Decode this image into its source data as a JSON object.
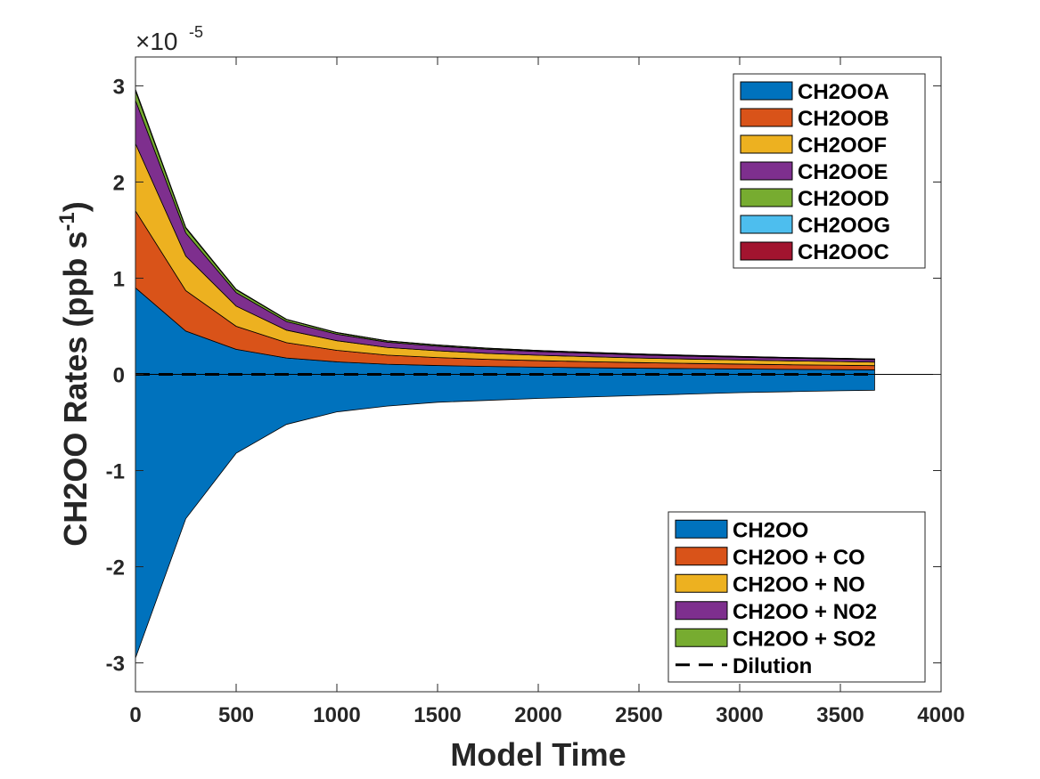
{
  "chart_data": {
    "type": "area",
    "title": "",
    "xlabel": "Model Time",
    "ylabel_main": "CH2OO Rates (ppb s",
    "ylabel_sup": "-1",
    "ylabel_close": ")",
    "exponent_prefix": "×10",
    "exponent_power": "-5",
    "xlim": [
      0,
      4000
    ],
    "ylim": [
      -3.3,
      3.3
    ],
    "x_ticks": [
      0,
      500,
      1000,
      1500,
      2000,
      2500,
      3000,
      3500,
      4000
    ],
    "y_ticks": [
      -3,
      -2,
      -1,
      0,
      1,
      2,
      3
    ],
    "x_tick_labels": [
      "0",
      "500",
      "1000",
      "1500",
      "2000",
      "2500",
      "3000",
      "3500",
      "4000"
    ],
    "y_tick_labels": [
      "-3",
      "-2",
      "-1",
      "0",
      "1",
      "2",
      "3"
    ],
    "x": [
      0,
      250,
      500,
      750,
      1000,
      1250,
      1500,
      1750,
      2000,
      2250,
      2500,
      2750,
      3000,
      3250,
      3500,
      3670
    ],
    "series": [
      {
        "name": "CH2OOA",
        "color": "#0072BD",
        "values": [
          0.9,
          0.45,
          0.26,
          0.17,
          0.13,
          0.105,
          0.092,
          0.082,
          0.075,
          0.069,
          0.064,
          0.06,
          0.056,
          0.052,
          0.049,
          0.047
        ]
      },
      {
        "name": "CH2OOB",
        "color": "#D95319",
        "values": [
          0.8,
          0.42,
          0.24,
          0.16,
          0.12,
          0.095,
          0.083,
          0.074,
          0.068,
          0.063,
          0.058,
          0.054,
          0.051,
          0.048,
          0.046,
          0.044
        ]
      },
      {
        "name": "CH2OOF",
        "color": "#EDB120",
        "values": [
          0.7,
          0.36,
          0.21,
          0.13,
          0.1,
          0.08,
          0.07,
          0.062,
          0.056,
          0.052,
          0.048,
          0.045,
          0.042,
          0.04,
          0.038,
          0.037
        ]
      },
      {
        "name": "CH2OOE",
        "color": "#7E2F8E",
        "values": [
          0.45,
          0.24,
          0.14,
          0.09,
          0.068,
          0.055,
          0.048,
          0.043,
          0.039,
          0.036,
          0.033,
          0.031,
          0.029,
          0.028,
          0.026,
          0.025
        ]
      },
      {
        "name": "CH2OOD",
        "color": "#77AC30",
        "values": [
          0.1,
          0.05,
          0.03,
          0.02,
          0.015,
          0.012,
          0.011,
          0.01,
          0.009,
          0.008,
          0.008,
          0.007,
          0.007,
          0.006,
          0.006,
          0.006
        ]
      },
      {
        "name": "CH2OOG",
        "color": "#4DBEEE",
        "values": [
          0.01,
          0.005,
          0.003,
          0.002,
          0.0015,
          0.0012,
          0.001,
          0.001,
          0.001,
          0.001,
          0.001,
          0.001,
          0.001,
          0.001,
          0.001,
          0.001
        ]
      },
      {
        "name": "CH2OOC",
        "color": "#A2142F",
        "values": [
          0.005,
          0.003,
          0.002,
          0.001,
          0.001,
          0.001,
          0.001,
          0.001,
          0.001,
          0.001,
          0.001,
          0.001,
          0.001,
          0.001,
          0.001,
          0.001
        ]
      }
    ],
    "negative_series": [
      {
        "name": "CH2OO",
        "color": "#0072BD",
        "values": [
          -2.95,
          -1.5,
          -0.82,
          -0.52,
          -0.39,
          -0.33,
          -0.29,
          -0.27,
          -0.25,
          -0.235,
          -0.22,
          -0.205,
          -0.19,
          -0.18,
          -0.17,
          -0.165
        ]
      }
    ],
    "dilution": {
      "name": "Dilution",
      "value": 0,
      "style": "dashed"
    },
    "legend_upper": {
      "placement": "top-right",
      "entries": [
        {
          "label": "CH2OOA",
          "color": "#0072BD"
        },
        {
          "label": "CH2OOB",
          "color": "#D95319"
        },
        {
          "label": "CH2OOF",
          "color": "#EDB120"
        },
        {
          "label": "CH2OOE",
          "color": "#7E2F8E"
        },
        {
          "label": "CH2OOD",
          "color": "#77AC30"
        },
        {
          "label": "CH2OOG",
          "color": "#4DBEEE"
        },
        {
          "label": "CH2OOC",
          "color": "#A2142F"
        }
      ]
    },
    "legend_lower": {
      "placement": "bottom-right",
      "entries": [
        {
          "label": "CH2OO",
          "color": "#0072BD",
          "kind": "patch"
        },
        {
          "label": "CH2OO + CO",
          "color": "#D95319",
          "kind": "patch"
        },
        {
          "label": "CH2OO + NO",
          "color": "#EDB120",
          "kind": "patch"
        },
        {
          "label": "CH2OO + NO2",
          "color": "#7E2F8E",
          "kind": "patch"
        },
        {
          "label": "CH2OO + SO2",
          "color": "#77AC30",
          "kind": "patch"
        },
        {
          "label": "Dilution",
          "color": "#000000",
          "kind": "dashed-line"
        }
      ]
    }
  }
}
